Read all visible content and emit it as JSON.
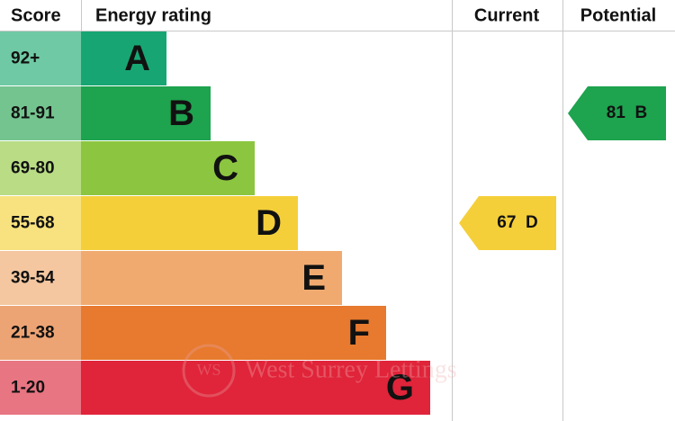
{
  "headers": {
    "score": "Score",
    "rating": "Energy rating",
    "current": "Current",
    "potential": "Potential"
  },
  "bands": [
    {
      "score": "92+",
      "letter": "A",
      "color": "#17a673",
      "tint": "#6fc9a4"
    },
    {
      "score": "81-91",
      "letter": "B",
      "color": "#1ea34f",
      "tint": "#74c48f"
    },
    {
      "score": "69-80",
      "letter": "C",
      "color": "#8cc640",
      "tint": "#b9dc85"
    },
    {
      "score": "55-68",
      "letter": "D",
      "color": "#f4cf3a",
      "tint": "#f8e27f"
    },
    {
      "score": "39-54",
      "letter": "E",
      "color": "#f0aa70",
      "tint": "#f4c7a0"
    },
    {
      "score": "21-38",
      "letter": "F",
      "color": "#e77a2e",
      "tint": "#eda474"
    },
    {
      "score": "1-20",
      "letter": "G",
      "color": "#e0243a",
      "tint": "#e87582"
    }
  ],
  "current": {
    "value": 67,
    "letter": "D"
  },
  "potential": {
    "value": 81,
    "letter": "B"
  },
  "watermark": {
    "logo": "WS",
    "text": "West Surrey Lettings"
  }
}
